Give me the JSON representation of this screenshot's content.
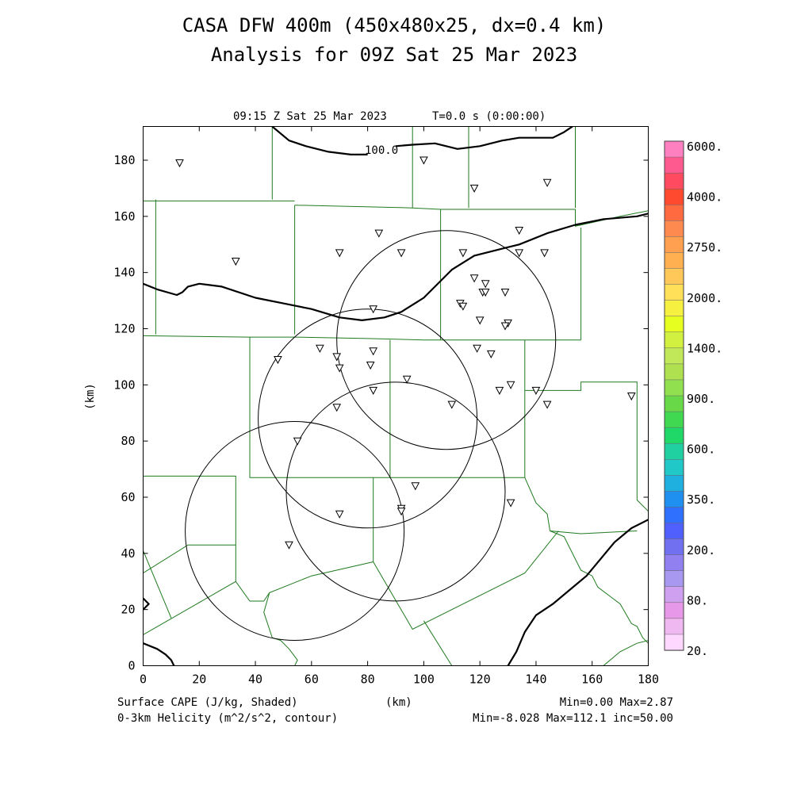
{
  "title": {
    "line1": "CASA DFW 400m (450x480x25, dx=0.4 km)",
    "line2": "Analysis for 09Z Sat 25 Mar 2023"
  },
  "valid_time": "09:15 Z Sat 25 Mar 2023",
  "model_time": "T=0.0 s (0:00:00)",
  "axes": {
    "x_unit": "(km)",
    "y_unit": "(km)",
    "xlim": [
      0,
      180
    ],
    "ylim": [
      0,
      192
    ],
    "x_ticks": [
      "0",
      "20",
      "40",
      "60",
      "80",
      "100",
      "120",
      "140",
      "160",
      "180"
    ],
    "y_ticks": [
      "0",
      "20",
      "40",
      "60",
      "80",
      "100",
      "120",
      "140",
      "160",
      "180"
    ]
  },
  "footer": {
    "shaded_field": "Surface CAPE (J/kg, Shaded)",
    "contour_field": "0-3km Helicity (m^2/s^2, contour)",
    "shaded_stats": "Min=0.00 Max=2.87",
    "contour_stats": "Min=-8.028 Max=112.1 inc=50.00"
  },
  "contour_label": "100.0",
  "colorbar": {
    "labels": [
      "6000.",
      "4000.",
      "2750.",
      "2000.",
      "1400.",
      "900.",
      "600.",
      "350.",
      "200.",
      "80.",
      "20."
    ],
    "colors": [
      "#ff80c0",
      "#ff5a90",
      "#ff4a60",
      "#ff4a30",
      "#ff6a40",
      "#ff8a50",
      "#ffa050",
      "#ffb050",
      "#ffc858",
      "#ffe058",
      "#f6f040",
      "#e6ff20",
      "#d2f040",
      "#c0e858",
      "#aee050",
      "#90e050",
      "#68d848",
      "#40d850",
      "#20d868",
      "#20d0a0",
      "#20c8c8",
      "#20b0e0",
      "#2090f0",
      "#3070ff",
      "#5060ff",
      "#7070f0",
      "#9080f0",
      "#a898f0",
      "#d0a0f0",
      "#e898e8",
      "#f0b8f0",
      "#ffd8ff"
    ]
  },
  "chart_data": {
    "type": "scatter",
    "radar_rings": [
      {
        "center": [
          108,
          116
        ],
        "radius": 39
      },
      {
        "center": [
          80,
          88
        ],
        "radius": 39
      },
      {
        "center": [
          90,
          62
        ],
        "radius": 39
      },
      {
        "center": [
          54,
          48
        ],
        "radius": 39
      }
    ],
    "stations": [
      [
        13,
        179
      ],
      [
        33,
        144
      ],
      [
        100,
        180
      ],
      [
        118,
        170
      ],
      [
        144,
        172
      ],
      [
        84,
        154
      ],
      [
        70,
        147
      ],
      [
        92,
        147
      ],
      [
        114,
        147
      ],
      [
        134,
        155
      ],
      [
        134,
        147
      ],
      [
        143,
        147
      ],
      [
        118,
        138
      ],
      [
        122,
        136
      ],
      [
        121,
        133
      ],
      [
        122,
        133
      ],
      [
        129,
        133
      ],
      [
        82,
        127
      ],
      [
        113,
        129
      ],
      [
        114,
        128
      ],
      [
        120,
        123
      ],
      [
        130,
        122
      ],
      [
        129,
        121
      ],
      [
        63,
        113
      ],
      [
        69,
        110
      ],
      [
        82,
        112
      ],
      [
        119,
        113
      ],
      [
        124,
        111
      ],
      [
        48,
        109
      ],
      [
        70,
        106
      ],
      [
        81,
        107
      ],
      [
        94,
        102
      ],
      [
        82,
        98
      ],
      [
        127,
        98
      ],
      [
        131,
        100
      ],
      [
        140,
        98
      ],
      [
        69,
        92
      ],
      [
        110,
        93
      ],
      [
        144,
        93
      ],
      [
        174,
        96
      ],
      [
        55,
        80
      ],
      [
        97,
        64
      ],
      [
        131,
        58
      ],
      [
        70,
        54
      ],
      [
        92,
        56
      ],
      [
        92,
        55
      ],
      [
        52,
        43
      ]
    ],
    "helicity_contours": [
      {
        "level": 100,
        "points": [
          [
            0,
            136
          ],
          [
            5,
            134
          ],
          [
            12,
            132
          ],
          [
            14,
            133
          ],
          [
            16,
            135
          ],
          [
            20,
            136
          ],
          [
            28,
            135
          ],
          [
            40,
            131
          ],
          [
            50,
            129
          ],
          [
            60,
            127
          ],
          [
            70,
            124
          ],
          [
            78,
            123
          ],
          [
            86,
            124
          ],
          [
            92,
            126
          ],
          [
            100,
            131
          ],
          [
            110,
            141
          ],
          [
            118,
            146
          ],
          [
            126,
            148
          ],
          [
            134,
            150
          ],
          [
            144,
            154
          ],
          [
            154,
            157
          ],
          [
            164,
            159
          ],
          [
            176,
            160
          ],
          [
            180,
            161
          ]
        ]
      },
      {
        "level": 100,
        "points": [
          [
            46,
            192
          ],
          [
            52,
            187
          ],
          [
            58,
            185
          ],
          [
            66,
            183
          ],
          [
            74,
            182
          ],
          [
            80,
            182
          ]
        ]
      },
      {
        "level": 100,
        "points": [
          [
            90,
            185
          ],
          [
            96,
            185.5
          ],
          [
            104,
            186
          ],
          [
            112,
            184
          ],
          [
            120,
            185
          ],
          [
            128,
            187
          ],
          [
            134,
            188
          ],
          [
            140,
            188
          ],
          [
            146,
            188
          ],
          [
            150,
            190
          ],
          [
            153,
            192
          ]
        ]
      },
      {
        "level": 100,
        "points": [
          [
            130,
            0
          ],
          [
            133,
            5
          ],
          [
            136,
            12
          ],
          [
            140,
            18
          ],
          [
            146,
            22
          ],
          [
            152,
            27
          ],
          [
            158,
            32
          ],
          [
            163,
            38
          ],
          [
            168,
            44
          ],
          [
            174,
            49
          ],
          [
            180,
            52
          ]
        ]
      },
      {
        "level": 100,
        "points": [
          [
            0,
            8
          ],
          [
            5,
            6
          ],
          [
            8,
            4
          ],
          [
            10,
            2
          ],
          [
            11,
            0
          ]
        ]
      },
      {
        "level": 100,
        "points": [
          [
            0,
            24
          ],
          [
            2,
            22
          ],
          [
            0,
            20
          ]
        ]
      }
    ],
    "county_lines": [
      [
        [
          180,
          192
        ],
        [
          180,
          0
        ]
      ],
      [
        [
          0,
          165.5
        ],
        [
          54,
          165.5
        ]
      ],
      [
        [
          4.5,
          166
        ],
        [
          4.5,
          118
        ]
      ],
      [
        [
          46,
          192
        ],
        [
          46,
          166
        ]
      ],
      [
        [
          54,
          164
        ],
        [
          96,
          163
        ],
        [
          106,
          162.5
        ],
        [
          116,
          162.5
        ],
        [
          136,
          162.5
        ],
        [
          154,
          162.5
        ]
      ],
      [
        [
          96,
          192
        ],
        [
          96,
          163
        ]
      ],
      [
        [
          116,
          192
        ],
        [
          116,
          163
        ]
      ],
      [
        [
          154,
          192
        ],
        [
          154,
          163
        ]
      ],
      [
        [
          54,
          164
        ],
        [
          54,
          118
        ]
      ],
      [
        [
          106,
          162.5
        ],
        [
          106,
          116
        ]
      ],
      [
        [
          154,
          162.5
        ],
        [
          154,
          156.5
        ],
        [
          170,
          160
        ],
        [
          180,
          162
        ]
      ],
      [
        [
          156,
          156
        ],
        [
          156,
          116
        ]
      ],
      [
        [
          0,
          117.5
        ],
        [
          38,
          117
        ],
        [
          54,
          117
        ],
        [
          80,
          116.5
        ],
        [
          100,
          116
        ],
        [
          120,
          116
        ],
        [
          156,
          116
        ]
      ],
      [
        [
          38,
          117
        ],
        [
          38,
          67
        ],
        [
          80,
          67
        ],
        [
          100,
          67
        ],
        [
          136,
          67
        ]
      ],
      [
        [
          88,
          116
        ],
        [
          88,
          67
        ]
      ],
      [
        [
          136,
          116
        ],
        [
          136,
          67
        ]
      ],
      [
        [
          136,
          98
        ],
        [
          156,
          98
        ],
        [
          156,
          101
        ],
        [
          176,
          101
        ],
        [
          176,
          59
        ],
        [
          180,
          55
        ]
      ],
      [
        [
          0,
          67.5
        ],
        [
          33,
          67.5
        ],
        [
          33,
          30
        ]
      ],
      [
        [
          136,
          67
        ],
        [
          140,
          58
        ],
        [
          144,
          54
        ],
        [
          145,
          48
        ],
        [
          156,
          47
        ],
        [
          176,
          48
        ]
      ],
      [
        [
          0,
          33
        ],
        [
          16,
          43
        ],
        [
          33,
          43
        ]
      ],
      [
        [
          0,
          41
        ],
        [
          10,
          17
        ]
      ],
      [
        [
          0,
          11
        ],
        [
          33,
          30
        ],
        [
          38,
          23
        ],
        [
          43,
          23
        ],
        [
          45,
          26
        ],
        [
          60,
          32
        ],
        [
          82,
          37
        ]
      ],
      [
        [
          82,
          67
        ],
        [
          82,
          37
        ],
        [
          96,
          13
        ],
        [
          136,
          33
        ],
        [
          148,
          48
        ]
      ],
      [
        [
          45,
          26
        ],
        [
          43,
          19
        ],
        [
          46,
          10
        ],
        [
          49,
          9
        ],
        [
          52,
          6
        ],
        [
          55,
          2
        ],
        [
          54,
          0
        ]
      ],
      [
        [
          145,
          48
        ],
        [
          150,
          46
        ],
        [
          156,
          34
        ],
        [
          160,
          32
        ],
        [
          162,
          28
        ],
        [
          166,
          25
        ],
        [
          170,
          22
        ],
        [
          174,
          15
        ],
        [
          176,
          14
        ],
        [
          178,
          10
        ],
        [
          180,
          8
        ]
      ],
      [
        [
          100,
          16
        ],
        [
          110,
          0
        ]
      ],
      [
        [
          164,
          0
        ],
        [
          170,
          5
        ],
        [
          176,
          8
        ],
        [
          180,
          9
        ]
      ]
    ]
  }
}
